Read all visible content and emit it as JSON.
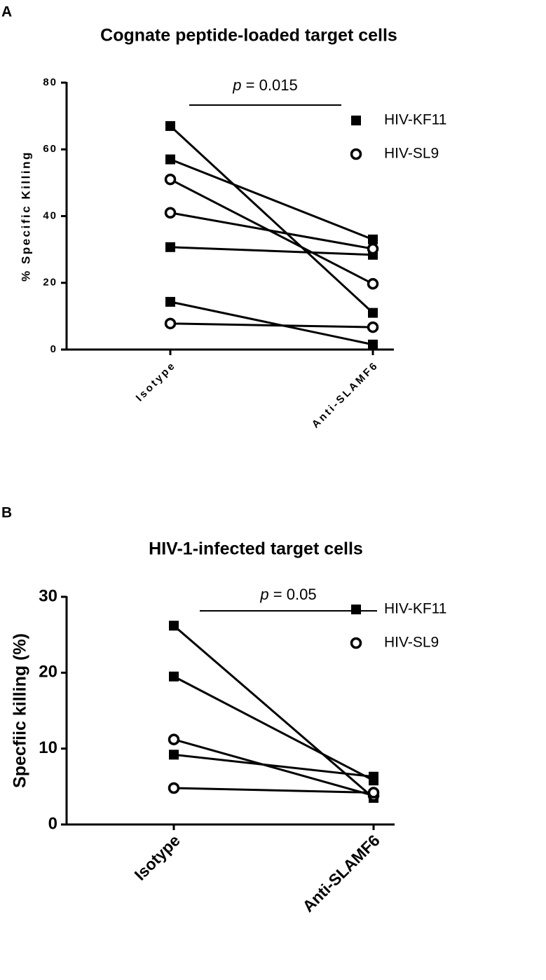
{
  "chart_data": [
    {
      "type": "paired",
      "panel": "A",
      "title": "Cognate peptide-loaded target cells",
      "y_label": "% Specific Killing",
      "categories": [
        "Isotype",
        "Anti-SLAMF6"
      ],
      "ylim": [
        0,
        80
      ],
      "yticks": [
        0,
        20,
        40,
        60,
        80
      ],
      "annotation": "p = 0.015",
      "series": [
        {
          "name": "HIV-KF11",
          "marker": "square",
          "color": "#000000",
          "values": [
            [
              67,
              11
            ],
            [
              57,
              33
            ],
            [
              30.7,
              28.4
            ],
            [
              14.3,
              1.5
            ]
          ]
        },
        {
          "name": "HIV-SL9",
          "marker": "circle",
          "color": "#000000",
          "values": [
            [
              51,
              19.7
            ],
            [
              41,
              30.2
            ],
            [
              7.8,
              6.7
            ]
          ]
        }
      ]
    },
    {
      "type": "paired",
      "panel": "B",
      "title": "HIV-1-infected target cells",
      "y_label": "Specfiic killing (%)",
      "categories": [
        "Isotype",
        "Anti-SLAMF6"
      ],
      "ylim": [
        0,
        30
      ],
      "yticks": [
        0,
        10,
        20,
        30
      ],
      "annotation": "p = 0.05",
      "series": [
        {
          "name": "HIV-KF11",
          "marker": "square",
          "color": "#000000",
          "values": [
            [
              26.2,
              3.5
            ],
            [
              19.5,
              5.8
            ],
            [
              9.2,
              6.3
            ]
          ]
        },
        {
          "name": "HIV-SL9",
          "marker": "circle",
          "color": "#000000",
          "values": [
            [
              11.2,
              3.8
            ],
            [
              4.8,
              4.2
            ]
          ]
        }
      ]
    }
  ]
}
